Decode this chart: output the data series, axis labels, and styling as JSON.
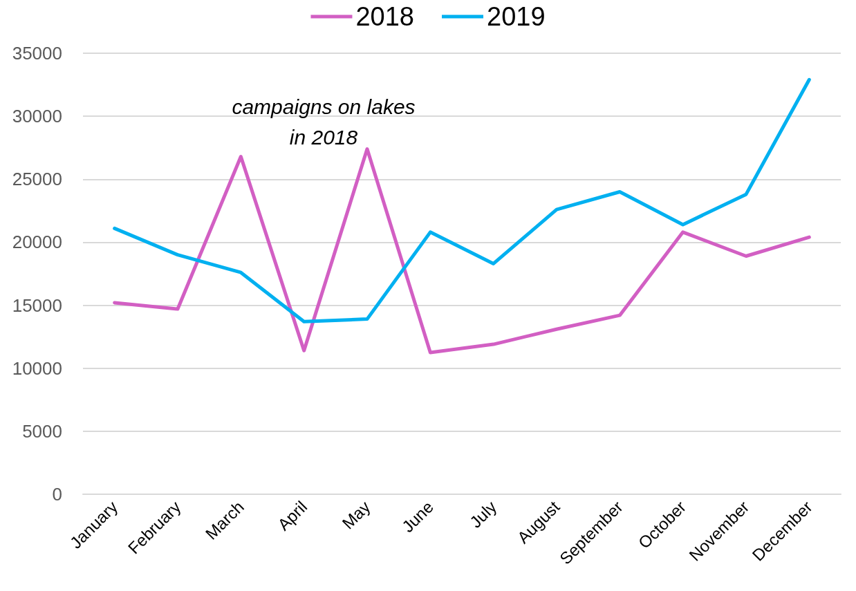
{
  "chart_data": {
    "type": "line",
    "categories": [
      "January",
      "February",
      "March",
      "April",
      "May",
      "June",
      "July",
      "August",
      "September",
      "October",
      "November",
      "December"
    ],
    "series": [
      {
        "name": "2018",
        "color": "#d25fc3",
        "values": [
          15200,
          14700,
          26800,
          11400,
          27400,
          11250,
          11900,
          13100,
          14200,
          20800,
          18900,
          20400
        ]
      },
      {
        "name": "2019",
        "color": "#00b0f0",
        "values": [
          21100,
          19000,
          17600,
          13700,
          13900,
          20800,
          18300,
          22600,
          24000,
          21400,
          23800,
          32900
        ]
      }
    ],
    "ylim": [
      0,
      35000
    ],
    "yticks": [
      0,
      5000,
      10000,
      15000,
      20000,
      25000,
      30000,
      35000
    ],
    "grid": "y",
    "legend": "top",
    "marker": "none",
    "line_style": "solid",
    "annotations": [
      "campaigns on lakes\nin 2018"
    ]
  }
}
